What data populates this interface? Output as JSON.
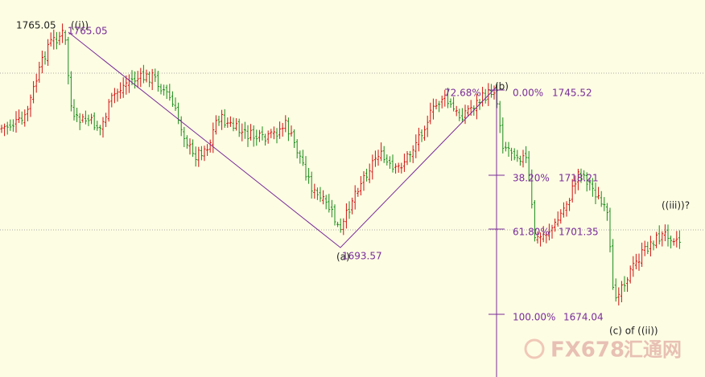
{
  "annotations": {
    "top_price": "1765.05",
    "wave_i": "((i))",
    "top_price_ghost": "1765.05",
    "pct_72": "72.68%",
    "wave_b": "(b)",
    "wave_a": "(a)",
    "low_a": "1693.57",
    "wave_c": "(c) of ((ii))",
    "wave_iii": "((iii))?"
  },
  "fib_levels": [
    {
      "pct": "0.00%",
      "price": "1745.52"
    },
    {
      "pct": "38.20%",
      "price": "1718.21"
    },
    {
      "pct": "61.80%",
      "price": "1701.35"
    },
    {
      "pct": "100.00%",
      "price": "1674.04"
    }
  ],
  "watermark": {
    "brand": "FX678",
    "site": "汇通网"
  }
}
